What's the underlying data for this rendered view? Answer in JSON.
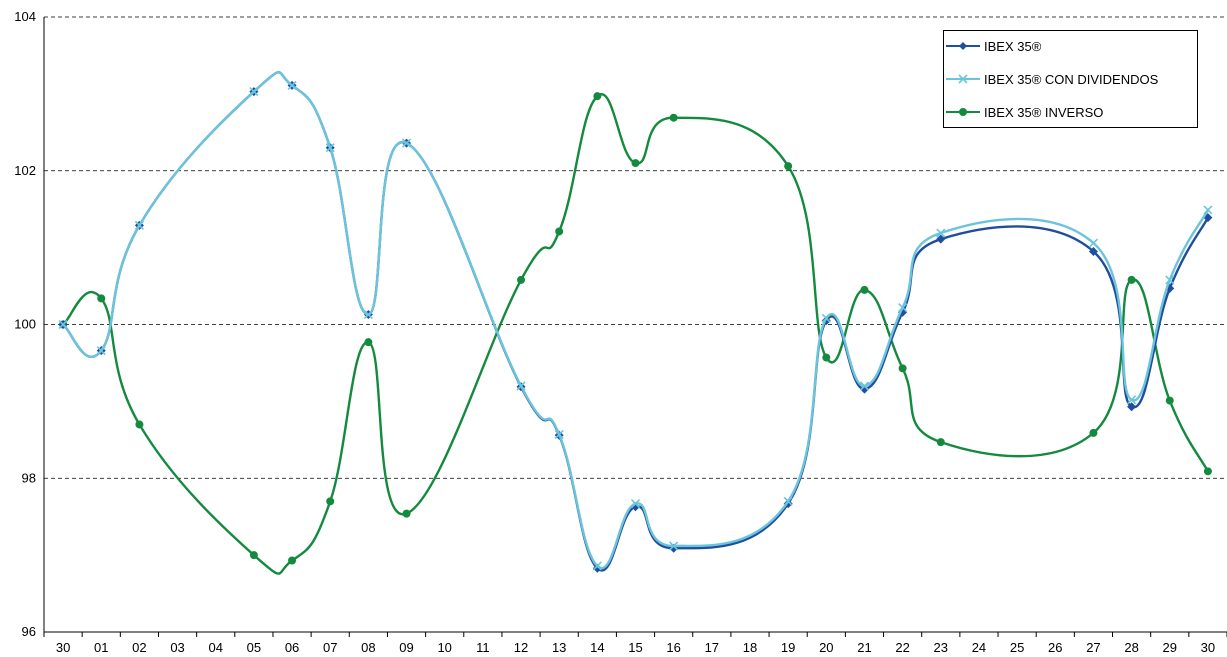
{
  "chart_data": {
    "type": "line",
    "title": "",
    "xlabel": "",
    "ylabel": "",
    "ylim": [
      96,
      104
    ],
    "yticks": [
      "96",
      "98",
      "100",
      "102",
      "104"
    ],
    "grid": "horizontal dashed",
    "legend_position": "top-right",
    "categories": [
      "30",
      "01",
      "02",
      "03",
      "04",
      "05",
      "06",
      "07",
      "08",
      "09",
      "10",
      "11",
      "12",
      "13",
      "14",
      "15",
      "16",
      "17",
      "18",
      "19",
      "20",
      "21",
      "22",
      "23",
      "24",
      "25",
      "26",
      "27",
      "28",
      "29",
      "30"
    ],
    "series": [
      {
        "name": "IBEX 35®",
        "color": "#1F4E9E",
        "marker": "diamond",
        "points": [
          {
            "i": 0,
            "v": 100.0
          },
          {
            "i": 1,
            "v": 99.66
          },
          {
            "i": 2,
            "v": 101.29
          },
          {
            "i": 5,
            "v": 103.03
          },
          {
            "i": 6,
            "v": 103.11
          },
          {
            "i": 7,
            "v": 102.3
          },
          {
            "i": 8,
            "v": 100.13
          },
          {
            "i": 9,
            "v": 102.36
          },
          {
            "i": 12,
            "v": 99.19
          },
          {
            "i": 13,
            "v": 98.56
          },
          {
            "i": 14,
            "v": 96.83
          },
          {
            "i": 15,
            "v": 97.63
          },
          {
            "i": 16,
            "v": 97.09
          },
          {
            "i": 19,
            "v": 97.67
          },
          {
            "i": 20,
            "v": 100.05
          },
          {
            "i": 21,
            "v": 99.16
          },
          {
            "i": 22,
            "v": 100.16
          },
          {
            "i": 23,
            "v": 101.11
          },
          {
            "i": 27,
            "v": 100.95
          },
          {
            "i": 28,
            "v": 98.93
          },
          {
            "i": 29,
            "v": 100.47
          },
          {
            "i": 30,
            "v": 101.39
          }
        ]
      },
      {
        "name": "IBEX 35® CON DIVIDENDOS",
        "color": "#6CC4DC",
        "marker": "x",
        "points": [
          {
            "i": 0,
            "v": 100.0
          },
          {
            "i": 1,
            "v": 99.66
          },
          {
            "i": 2,
            "v": 101.29
          },
          {
            "i": 5,
            "v": 103.03
          },
          {
            "i": 6,
            "v": 103.11
          },
          {
            "i": 7,
            "v": 102.3
          },
          {
            "i": 8,
            "v": 100.13
          },
          {
            "i": 9,
            "v": 102.36
          },
          {
            "i": 12,
            "v": 99.2
          },
          {
            "i": 13,
            "v": 98.57
          },
          {
            "i": 14,
            "v": 96.86
          },
          {
            "i": 15,
            "v": 97.67
          },
          {
            "i": 16,
            "v": 97.12
          },
          {
            "i": 19,
            "v": 97.7
          },
          {
            "i": 20,
            "v": 100.08
          },
          {
            "i": 21,
            "v": 99.2
          },
          {
            "i": 22,
            "v": 100.22
          },
          {
            "i": 23,
            "v": 101.19
          },
          {
            "i": 27,
            "v": 101.06
          },
          {
            "i": 28,
            "v": 99.02
          },
          {
            "i": 29,
            "v": 100.58
          },
          {
            "i": 30,
            "v": 101.49
          }
        ]
      },
      {
        "name": "IBEX 35® INVERSO",
        "color": "#138A3E",
        "marker": "circle",
        "points": [
          {
            "i": 0,
            "v": 100.0
          },
          {
            "i": 1,
            "v": 100.34
          },
          {
            "i": 2,
            "v": 98.7
          },
          {
            "i": 5,
            "v": 97.0
          },
          {
            "i": 6,
            "v": 96.93
          },
          {
            "i": 7,
            "v": 97.7
          },
          {
            "i": 8,
            "v": 99.77
          },
          {
            "i": 9,
            "v": 97.54
          },
          {
            "i": 12,
            "v": 100.58
          },
          {
            "i": 13,
            "v": 101.21
          },
          {
            "i": 14,
            "v": 102.97
          },
          {
            "i": 15,
            "v": 102.1
          },
          {
            "i": 16,
            "v": 102.69
          },
          {
            "i": 19,
            "v": 102.06
          },
          {
            "i": 20,
            "v": 99.57
          },
          {
            "i": 21,
            "v": 100.45
          },
          {
            "i": 22,
            "v": 99.43
          },
          {
            "i": 23,
            "v": 98.47
          },
          {
            "i": 27,
            "v": 98.59
          },
          {
            "i": 28,
            "v": 100.58
          },
          {
            "i": 29,
            "v": 99.01
          },
          {
            "i": 30,
            "v": 98.09
          }
        ]
      }
    ]
  },
  "legend": {
    "items": [
      {
        "label": "IBEX 35®"
      },
      {
        "label": "IBEX 35® CON DIVIDENDOS"
      },
      {
        "label": "IBEX 35® INVERSO"
      }
    ]
  }
}
